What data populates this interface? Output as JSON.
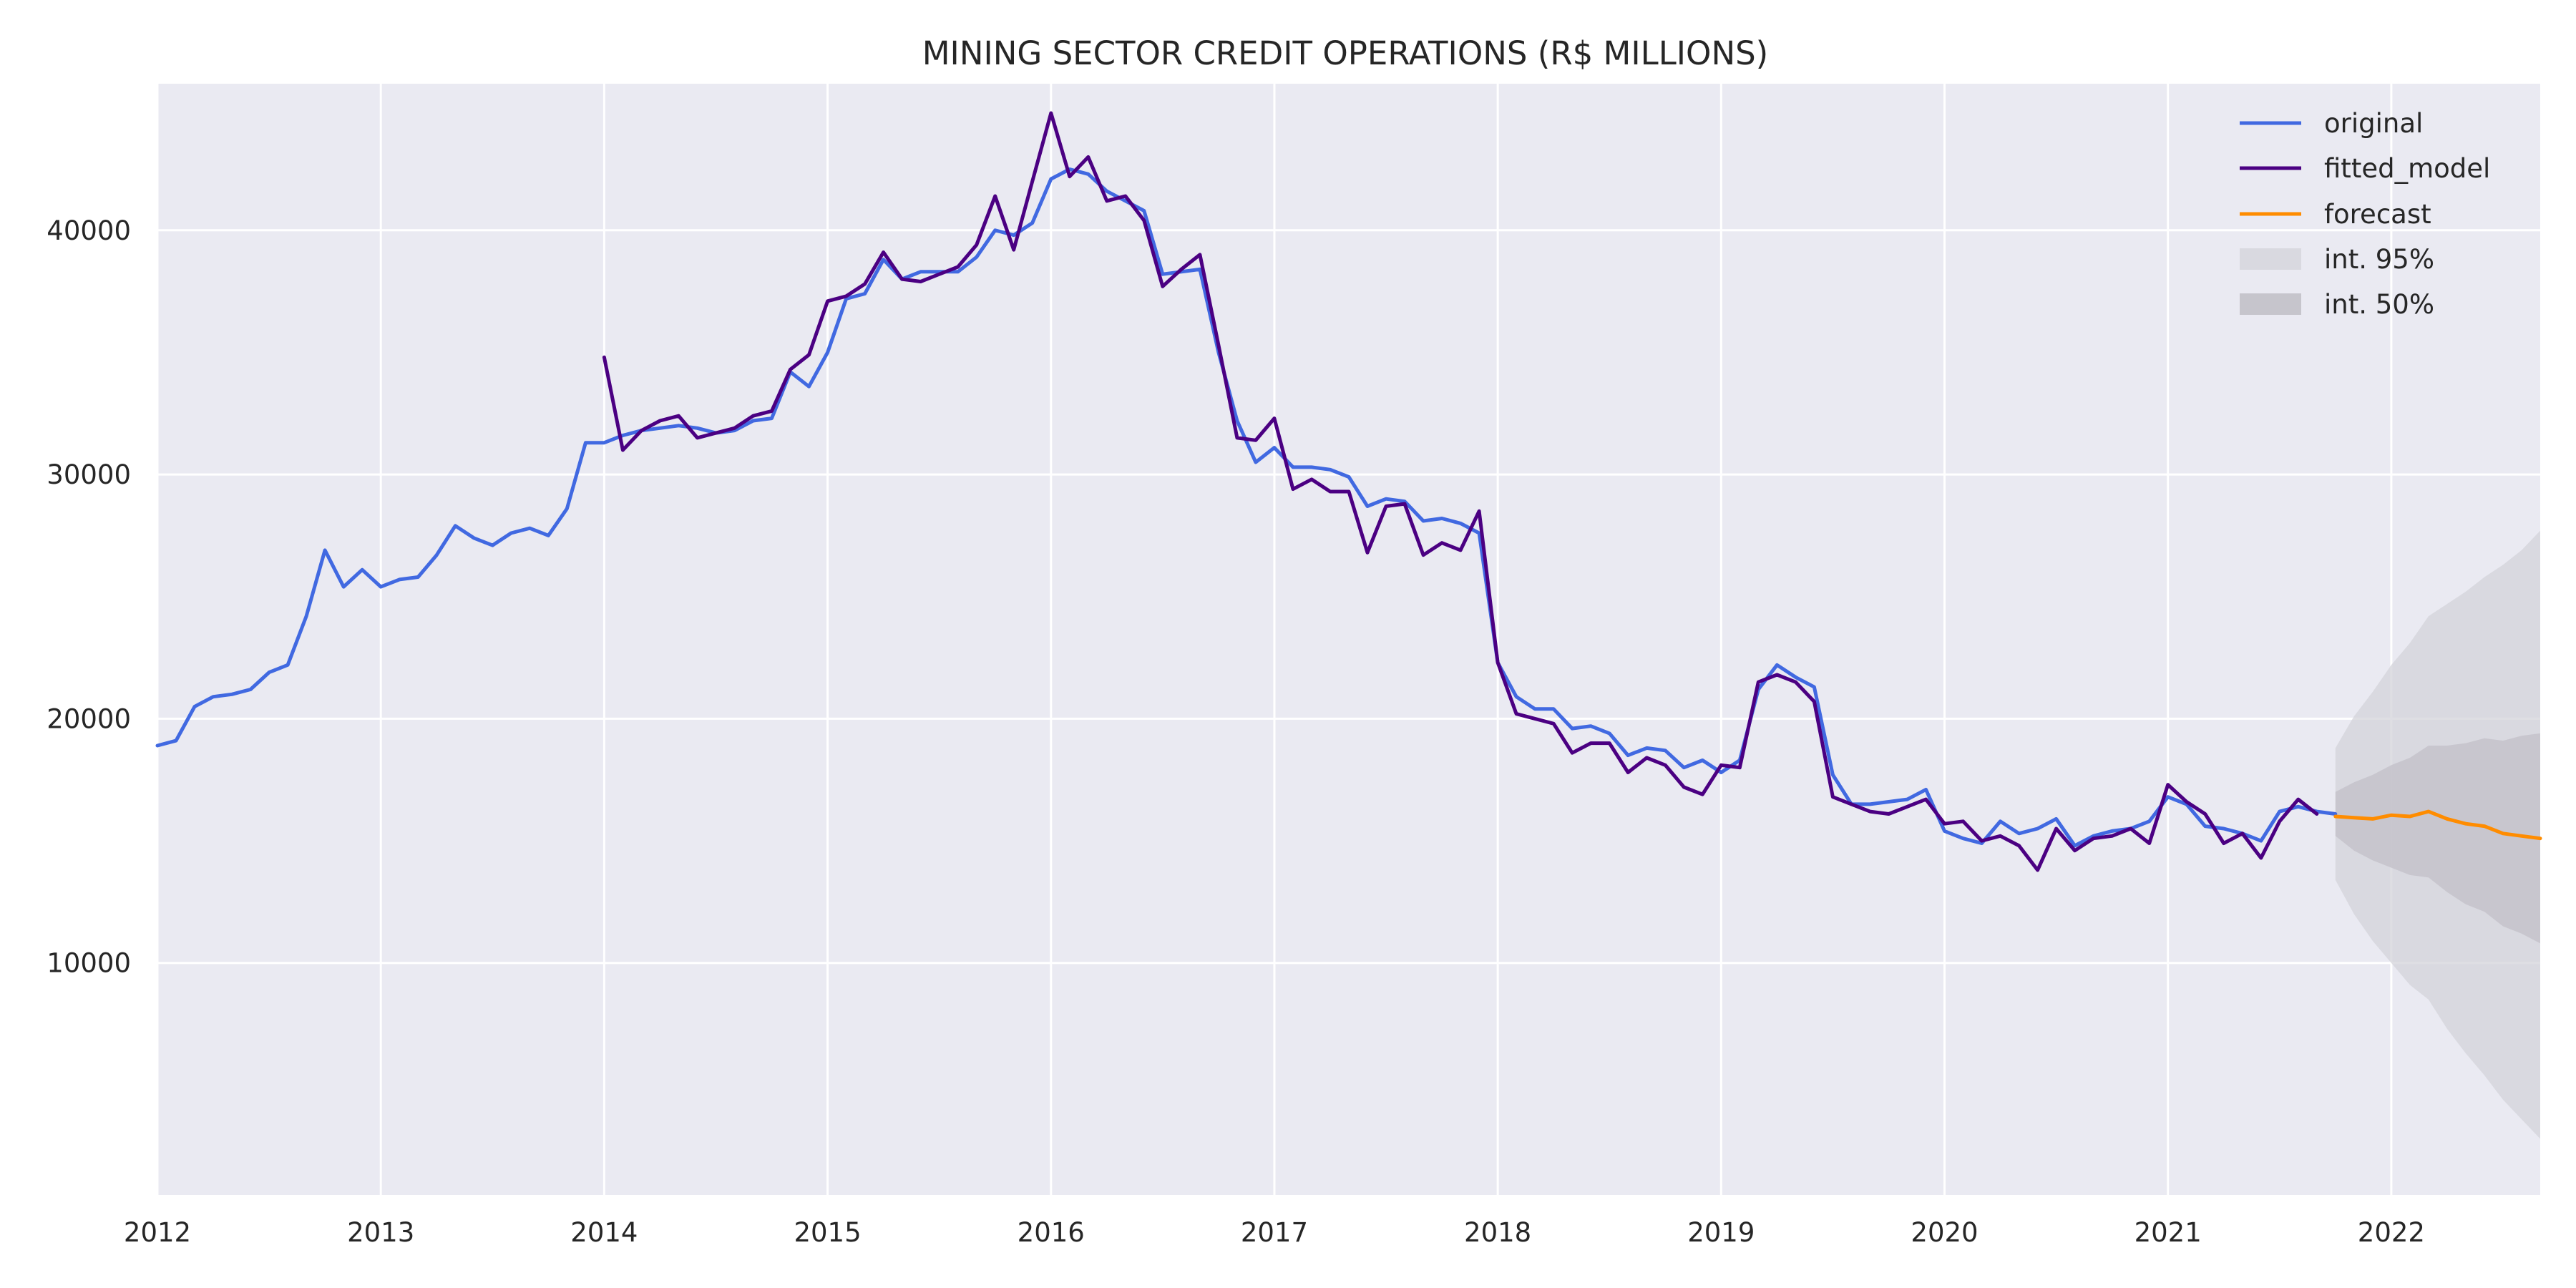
{
  "chart_data": {
    "type": "line",
    "title": "MINING SECTOR CREDIT OPERATIONS (R$ MILLIONS)",
    "xlabel": "",
    "ylabel": "",
    "x_range": [
      "2012-01",
      "2022-09"
    ],
    "y_range": [
      500,
      46000
    ],
    "x_ticks": [
      "2012",
      "2013",
      "2014",
      "2015",
      "2016",
      "2017",
      "2018",
      "2019",
      "2020",
      "2021",
      "2022"
    ],
    "y_ticks": [
      10000,
      20000,
      30000,
      40000
    ],
    "grid": true,
    "legend_position": "top-right",
    "legend": {
      "original": "original",
      "fitted_model": "fitted_model",
      "forecast": "forecast",
      "int95": "int. 95%",
      "int50": "int. 50%"
    },
    "colors": {
      "background": "#eaeaf2",
      "grid": "#ffffff",
      "original": "#4169e1",
      "fitted_model": "#4b0082",
      "forecast": "#ff8c00",
      "int95": "#d3d3d9",
      "int50": "#c0bec6"
    },
    "series": [
      {
        "name": "original",
        "start": "2012-01",
        "values": [
          18900,
          19100,
          20500,
          20900,
          21000,
          21200,
          21900,
          22200,
          24200,
          26900,
          25400,
          26100,
          25400,
          25700,
          25800,
          26700,
          27900,
          27400,
          27100,
          27600,
          27800,
          27500,
          28600,
          31300,
          31300,
          31600,
          31800,
          31900,
          32000,
          31900,
          31700,
          31800,
          32200,
          32300,
          34200,
          33600,
          35000,
          37200,
          37400,
          38800,
          38000,
          38300,
          38300,
          38300,
          38900,
          40000,
          39800,
          40300,
          42100,
          42500,
          42300,
          41600,
          41200,
          40800,
          38200,
          38300,
          38400,
          35000,
          32200,
          30500,
          31100,
          30300,
          30300,
          30200,
          29900,
          28700,
          29000,
          28900,
          28100,
          28200,
          28000,
          27600,
          22300,
          20900,
          20400,
          20400,
          19600,
          19700,
          19400,
          18500,
          18800,
          18700,
          18000,
          18300,
          17800,
          18300,
          21200,
          22200,
          21700,
          21300,
          17700,
          16500,
          16500,
          16600,
          16700,
          17100,
          15400,
          15100,
          14900,
          15800,
          15300,
          15500,
          15900,
          14800,
          15200,
          15400,
          15500,
          15800,
          16800,
          16500,
          15600,
          15500,
          15300,
          15000,
          16200,
          16400,
          16200,
          16100
        ]
      },
      {
        "name": "fitted_model",
        "start": "2014-01",
        "values": [
          34800,
          31000,
          31800,
          32200,
          32400,
          31500,
          31700,
          31900,
          32400,
          32600,
          34300,
          34900,
          37100,
          37300,
          37800,
          39100,
          38000,
          37900,
          38200,
          38500,
          39400,
          41400,
          39200,
          42000,
          44800,
          42200,
          43000,
          41200,
          41400,
          40400,
          37700,
          38400,
          39000,
          35300,
          31500,
          31400,
          32300,
          29400,
          29800,
          29300,
          29300,
          26800,
          28700,
          28800,
          26700,
          27200,
          26900,
          28500,
          22300,
          20200,
          20000,
          19800,
          18600,
          19000,
          19000,
          17800,
          18400,
          18100,
          17200,
          16900,
          18100,
          18000,
          21500,
          21800,
          21500,
          20700,
          16800,
          16500,
          16200,
          16100,
          16400,
          16700,
          15700,
          15800,
          15000,
          15200,
          14800,
          13800,
          15500,
          14600,
          15100,
          15200,
          15500,
          14900,
          17300,
          16600,
          16100,
          14900,
          15300,
          14300,
          15800,
          16700,
          16100
        ]
      },
      {
        "name": "forecast",
        "start": "2021-10",
        "values": [
          16000,
          15950,
          15900,
          16050,
          16000,
          16200,
          15900,
          15700,
          15600,
          15300,
          15200,
          15100
        ]
      }
    ],
    "intervals": [
      {
        "name": "int. 95%",
        "start": "2021-10",
        "lower": [
          13400,
          12000,
          10900,
          10000,
          9100,
          8500,
          7300,
          6300,
          5400,
          4400,
          3600,
          2800
        ],
        "upper": [
          18800,
          20100,
          21100,
          22200,
          23100,
          24200,
          24700,
          25200,
          25800,
          26300,
          26900,
          27700
        ]
      },
      {
        "name": "int. 50%",
        "start": "2021-10",
        "lower": [
          15200,
          14600,
          14200,
          13900,
          13600,
          13500,
          12900,
          12400,
          12100,
          11500,
          11200,
          10800
        ],
        "upper": [
          17000,
          17400,
          17700,
          18100,
          18400,
          18900,
          18900,
          19000,
          19200,
          19100,
          19300,
          19400
        ]
      }
    ]
  }
}
